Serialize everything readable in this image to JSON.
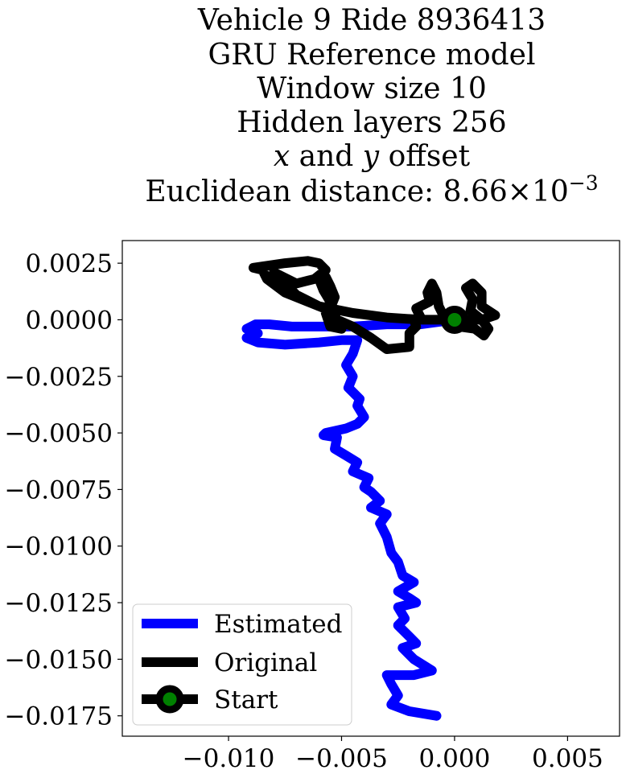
{
  "chart_data": {
    "type": "line",
    "title_lines": [
      "Vehicle 9 Ride 8936413",
      "GRU Reference model",
      "Window size 10",
      "Hidden layers 256"
    ],
    "title_offset_line": {
      "x": "x",
      "and": " and ",
      "y": "y",
      "rest": " offset"
    },
    "title_distance_line": {
      "prefix": "Euclidean distance: ",
      "mantissa": "8.66",
      "times": "×10",
      "exponent": "−3"
    },
    "xlabel": "",
    "ylabel": "",
    "xlim": [
      -0.0147,
      0.0073
    ],
    "ylim": [
      -0.0184,
      0.0035
    ],
    "x_ticks": [
      {
        "value": -0.01,
        "label": "−0.010"
      },
      {
        "value": -0.005,
        "label": "−0.005"
      },
      {
        "value": 0.0,
        "label": "0.000"
      },
      {
        "value": 0.005,
        "label": "0.005"
      }
    ],
    "y_ticks": [
      {
        "value": 0.0025,
        "label": "0.0025"
      },
      {
        "value": 0.0,
        "label": "0.0000"
      },
      {
        "value": -0.0025,
        "label": "−0.0025"
      },
      {
        "value": -0.005,
        "label": "−0.0050"
      },
      {
        "value": -0.0075,
        "label": "−0.0075"
      },
      {
        "value": -0.01,
        "label": "−0.0100"
      },
      {
        "value": -0.0125,
        "label": "−0.0125"
      },
      {
        "value": -0.015,
        "label": "−0.0150"
      },
      {
        "value": -0.0175,
        "label": "−0.0175"
      }
    ],
    "grid": false,
    "legend_position": "lower-left",
    "series": [
      {
        "name": "Estimated",
        "color": "#0000ff",
        "points": [
          [
            0.0,
            0.0
          ],
          [
            -0.0015,
            -0.0002
          ],
          [
            -0.003,
            -0.0002
          ],
          [
            -0.0045,
            -0.0003
          ],
          [
            -0.006,
            -0.0003
          ],
          [
            -0.0072,
            -0.0003
          ],
          [
            -0.0082,
            -0.0002
          ],
          [
            -0.0088,
            -0.0002
          ],
          [
            -0.0092,
            -0.0004
          ],
          [
            -0.0087,
            -0.0006
          ],
          [
            -0.0092,
            -0.0008
          ],
          [
            -0.0087,
            -0.001
          ],
          [
            -0.0075,
            -0.0011
          ],
          [
            -0.006,
            -0.001
          ],
          [
            -0.005,
            -0.0009
          ],
          [
            -0.0043,
            -0.0009
          ],
          [
            -0.0045,
            -0.0015
          ],
          [
            -0.0048,
            -0.002
          ],
          [
            -0.0045,
            -0.0025
          ],
          [
            -0.0047,
            -0.003
          ],
          [
            -0.0042,
            -0.0035
          ],
          [
            -0.0043,
            -0.0038
          ],
          [
            -0.004,
            -0.0043
          ],
          [
            -0.0043,
            -0.0046
          ],
          [
            -0.0048,
            -0.0048
          ],
          [
            -0.0057,
            -0.005
          ],
          [
            -0.0058,
            -0.0051
          ],
          [
            -0.0052,
            -0.0052
          ],
          [
            -0.0053,
            -0.0057
          ],
          [
            -0.0048,
            -0.006
          ],
          [
            -0.0043,
            -0.0063
          ],
          [
            -0.0045,
            -0.0067
          ],
          [
            -0.0038,
            -0.007
          ],
          [
            -0.004,
            -0.0074
          ],
          [
            -0.0037,
            -0.0076
          ],
          [
            -0.0033,
            -0.008
          ],
          [
            -0.0037,
            -0.0083
          ],
          [
            -0.003,
            -0.0086
          ],
          [
            -0.0033,
            -0.009
          ],
          [
            -0.003,
            -0.0096
          ],
          [
            -0.0028,
            -0.0103
          ],
          [
            -0.0025,
            -0.0107
          ],
          [
            -0.0023,
            -0.0113
          ],
          [
            -0.0018,
            -0.0116
          ],
          [
            -0.0025,
            -0.012
          ],
          [
            -0.002,
            -0.0123
          ],
          [
            -0.0017,
            -0.0125
          ],
          [
            -0.0025,
            -0.0127
          ],
          [
            -0.0022,
            -0.0132
          ],
          [
            -0.0025,
            -0.0135
          ],
          [
            -0.002,
            -0.014
          ],
          [
            -0.0017,
            -0.0143
          ],
          [
            -0.0023,
            -0.0145
          ],
          [
            -0.0018,
            -0.015
          ],
          [
            -0.001,
            -0.0155
          ],
          [
            -0.0018,
            -0.0157
          ],
          [
            -0.003,
            -0.0157
          ],
          [
            -0.0028,
            -0.0161
          ],
          [
            -0.0025,
            -0.0166
          ],
          [
            -0.0028,
            -0.017
          ],
          [
            -0.002,
            -0.0173
          ],
          [
            -0.0008,
            -0.0175
          ]
        ]
      },
      {
        "name": "Original",
        "color": "#000000",
        "points": [
          [
            0.0,
            0.0
          ],
          [
            0.0012,
            0.0
          ],
          [
            0.0018,
            0.0002
          ],
          [
            0.0015,
            0.0004
          ],
          [
            0.0012,
            0.0006
          ],
          [
            0.0012,
            0.0012
          ],
          [
            0.0008,
            0.0016
          ],
          [
            0.0005,
            0.0014
          ],
          [
            0.0008,
            0.0009
          ],
          [
            0.0007,
            0.0004
          ],
          [
            0.0012,
            0.0
          ],
          [
            0.0015,
            -0.0004
          ],
          [
            0.0013,
            -0.0007
          ],
          [
            0.0009,
            -0.0004
          ],
          [
            0.0002,
            -0.0003
          ],
          [
            -0.0004,
            -0.0001
          ],
          [
            -0.0005,
            0.0002
          ],
          [
            -0.0007,
            0.0006
          ],
          [
            -0.0008,
            0.0012
          ],
          [
            -0.001,
            0.0016
          ],
          [
            -0.0012,
            0.0012
          ],
          [
            -0.0011,
            0.0008
          ],
          [
            -0.0017,
            0.0005
          ],
          [
            -0.0015,
            0.0001
          ],
          [
            -0.0018,
            0.0
          ],
          [
            -0.0017,
            -0.0003
          ],
          [
            -0.002,
            -0.0006
          ],
          [
            -0.002,
            -0.0012
          ],
          [
            -0.003,
            -0.0013
          ],
          [
            -0.0037,
            -0.0008
          ],
          [
            -0.0045,
            -0.0003
          ],
          [
            -0.0052,
            0.0
          ],
          [
            -0.0055,
            0.0005
          ],
          [
            -0.0053,
            0.001
          ],
          [
            -0.0055,
            0.0015
          ],
          [
            -0.0057,
            0.0019
          ],
          [
            -0.006,
            0.0018
          ],
          [
            -0.0058,
            0.0013
          ],
          [
            -0.0055,
            0.0008
          ],
          [
            -0.0057,
            0.0003
          ],
          [
            -0.0055,
            -0.0003
          ],
          [
            -0.005,
            -0.0004
          ],
          [
            -0.0055,
            0.0004
          ],
          [
            -0.0065,
            0.0008
          ],
          [
            -0.0075,
            0.0012
          ],
          [
            -0.0083,
            0.0018
          ],
          [
            -0.0085,
            0.0022
          ],
          [
            -0.0089,
            0.0023
          ],
          [
            -0.0082,
            0.0024
          ],
          [
            -0.0075,
            0.0025
          ],
          [
            -0.0065,
            0.0026
          ],
          [
            -0.006,
            0.0025
          ],
          [
            -0.0057,
            0.0022
          ],
          [
            -0.0062,
            0.0018
          ],
          [
            -0.007,
            0.0016
          ],
          [
            -0.008,
            0.0021
          ],
          [
            -0.007,
            0.0011
          ],
          [
            -0.006,
            0.0006
          ],
          [
            -0.0045,
            0.0003
          ],
          [
            -0.003,
            0.0001
          ],
          [
            -0.0015,
            0.0
          ],
          [
            0.0,
            0.0
          ]
        ]
      }
    ],
    "start_marker": {
      "name": "Start",
      "x": 0.0,
      "y": 0.0,
      "face_color": "#008000",
      "edge_color": "#000000"
    }
  }
}
